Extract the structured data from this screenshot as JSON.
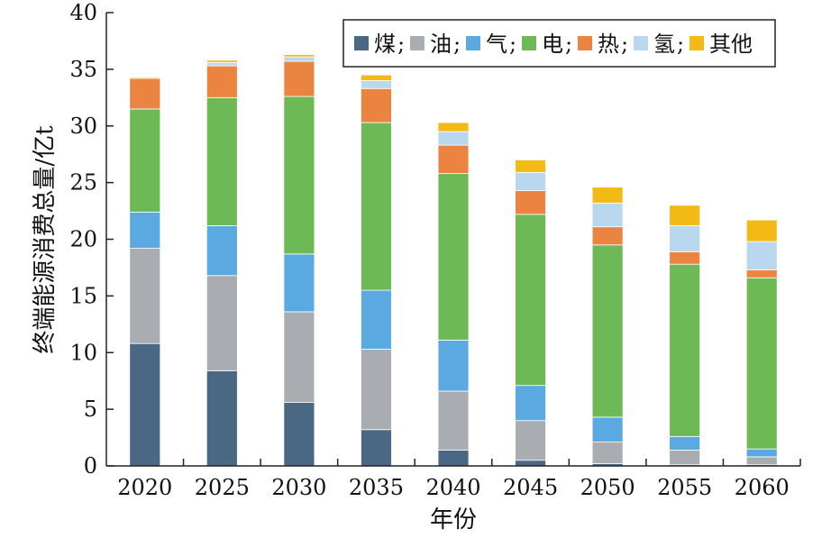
{
  "chart_data": {
    "type": "bar",
    "stacked": true,
    "xlabel": "年份",
    "ylabel": "终端能源消费总量/亿t",
    "ylim": [
      0,
      40
    ],
    "yticks": [
      0,
      5,
      10,
      15,
      20,
      25,
      30,
      35,
      40
    ],
    "categories": [
      "2020",
      "2025",
      "2030",
      "2035",
      "2040",
      "2045",
      "2050",
      "2055",
      "2060"
    ],
    "legend_position": "top-right",
    "series": [
      {
        "name": "煤",
        "color": "#4a6784",
        "values": [
          10.8,
          8.4,
          5.6,
          3.2,
          1.4,
          0.5,
          0.2,
          0.1,
          0.1
        ]
      },
      {
        "name": "油",
        "color": "#a9acb1",
        "values": [
          8.4,
          8.4,
          8.0,
          7.1,
          5.2,
          3.5,
          1.9,
          1.3,
          0.7
        ]
      },
      {
        "name": "气",
        "color": "#5aa9e0",
        "values": [
          3.2,
          4.4,
          5.1,
          5.2,
          4.5,
          3.1,
          2.2,
          1.2,
          0.7
        ]
      },
      {
        "name": "电",
        "color": "#6cb955",
        "values": [
          9.1,
          11.3,
          13.9,
          14.8,
          14.7,
          15.1,
          15.2,
          15.2,
          15.1
        ]
      },
      {
        "name": "热",
        "color": "#ea8440",
        "values": [
          2.7,
          2.8,
          3.1,
          3.0,
          2.5,
          2.1,
          1.6,
          1.1,
          0.7
        ]
      },
      {
        "name": "氢",
        "color": "#b9d8ee",
        "values": [
          0.0,
          0.3,
          0.4,
          0.7,
          1.2,
          1.6,
          2.1,
          2.3,
          2.5
        ]
      },
      {
        "name": "其他",
        "color": "#f3b915",
        "values": [
          0.1,
          0.2,
          0.2,
          0.5,
          0.8,
          1.1,
          1.4,
          1.8,
          1.9
        ]
      }
    ]
  }
}
